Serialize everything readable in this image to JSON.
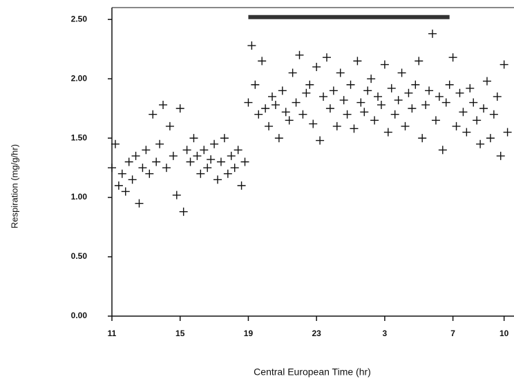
{
  "chart_data": {
    "type": "scatter",
    "x_label": "Central European Time (hr)",
    "y_label": "Respiration (mg/g/hr)",
    "xlim": [
      11,
      34.5
    ],
    "ylim": [
      0,
      2.6
    ],
    "xticks": [
      11,
      15,
      19,
      23,
      {
        "value": 27,
        "label": "3"
      },
      {
        "value": 31,
        "label": "7"
      },
      {
        "value": 34,
        "label": "10"
      }
    ],
    "yticks": [
      {
        "value": 0,
        "label": "0.00"
      },
      {
        "value": 0.5,
        "label": "0.50"
      },
      {
        "value": 1,
        "label": "1.00"
      },
      {
        "value": 1.5,
        "label": "1.50"
      },
      {
        "value": 2,
        "label": "2.00"
      },
      {
        "value": 2.5,
        "label": "2.50"
      }
    ],
    "dark_bar": {
      "x": [
        19,
        30.8
      ],
      "y": 2.52
    },
    "color": "#111111",
    "x": [
      11.0,
      11.2,
      11.4,
      11.6,
      11.8,
      12.0,
      12.2,
      12.4,
      12.6,
      12.8,
      13.0,
      13.2,
      13.4,
      13.6,
      13.8,
      14.0,
      14.2,
      14.4,
      14.6,
      14.8,
      15.0,
      15.2,
      15.4,
      15.6,
      15.8,
      16.0,
      16.2,
      16.4,
      16.6,
      16.8,
      17.0,
      17.2,
      17.4,
      17.6,
      17.8,
      18.0,
      18.2,
      18.4,
      18.6,
      18.8,
      19.0,
      19.2,
      19.4,
      19.6,
      19.8,
      20.0,
      20.2,
      20.4,
      20.6,
      20.8,
      21.0,
      21.2,
      21.4,
      21.6,
      21.8,
      22.0,
      22.2,
      22.4,
      22.6,
      22.8,
      23.0,
      23.2,
      23.4,
      23.6,
      23.8,
      24.0,
      24.2,
      24.4,
      24.6,
      24.8,
      25.0,
      25.2,
      25.4,
      25.6,
      25.8,
      26.0,
      26.2,
      26.4,
      26.6,
      26.8,
      27.0,
      27.2,
      27.4,
      27.6,
      27.8,
      28.0,
      28.2,
      28.4,
      28.6,
      28.8,
      29.0,
      29.2,
      29.4,
      29.6,
      29.8,
      30.0,
      30.2,
      30.4,
      30.6,
      30.8,
      31.0,
      31.2,
      31.4,
      31.6,
      31.8,
      32.0,
      32.2,
      32.4,
      32.6,
      32.8,
      33.0,
      33.2,
      33.4,
      33.6,
      33.8,
      34.0,
      34.2
    ],
    "values": [
      1.25,
      1.45,
      1.1,
      1.2,
      1.05,
      1.3,
      1.15,
      1.35,
      0.95,
      1.25,
      1.4,
      1.2,
      1.7,
      1.3,
      1.45,
      1.78,
      1.25,
      1.6,
      1.35,
      1.02,
      1.75,
      0.88,
      1.4,
      1.3,
      1.5,
      1.35,
      1.2,
      1.4,
      1.25,
      1.32,
      1.45,
      1.15,
      1.3,
      1.5,
      1.2,
      1.35,
      1.25,
      1.4,
      1.1,
      1.3,
      1.8,
      2.28,
      1.95,
      1.7,
      2.15,
      1.75,
      1.6,
      1.85,
      1.78,
      1.5,
      1.9,
      1.72,
      1.65,
      2.05,
      1.8,
      2.2,
      1.7,
      1.88,
      1.95,
      1.62,
      2.1,
      1.48,
      1.85,
      2.18,
      1.75,
      1.9,
      1.6,
      2.05,
      1.82,
      1.7,
      1.95,
      1.58,
      2.15,
      1.8,
      1.72,
      1.9,
      2.0,
      1.65,
      1.85,
      1.78,
      2.12,
      1.55,
      1.92,
      1.7,
      1.82,
      2.05,
      1.6,
      1.88,
      1.75,
      1.95,
      2.15,
      1.5,
      1.78,
      1.9,
      2.38,
      1.65,
      1.85,
      1.4,
      1.8,
      1.95,
      2.18,
      1.6,
      1.88,
      1.72,
      1.55,
      1.92,
      1.8,
      1.65,
      1.45,
      1.75,
      1.98,
      1.5,
      1.7,
      1.85,
      1.35,
      2.12,
      1.55
    ]
  }
}
